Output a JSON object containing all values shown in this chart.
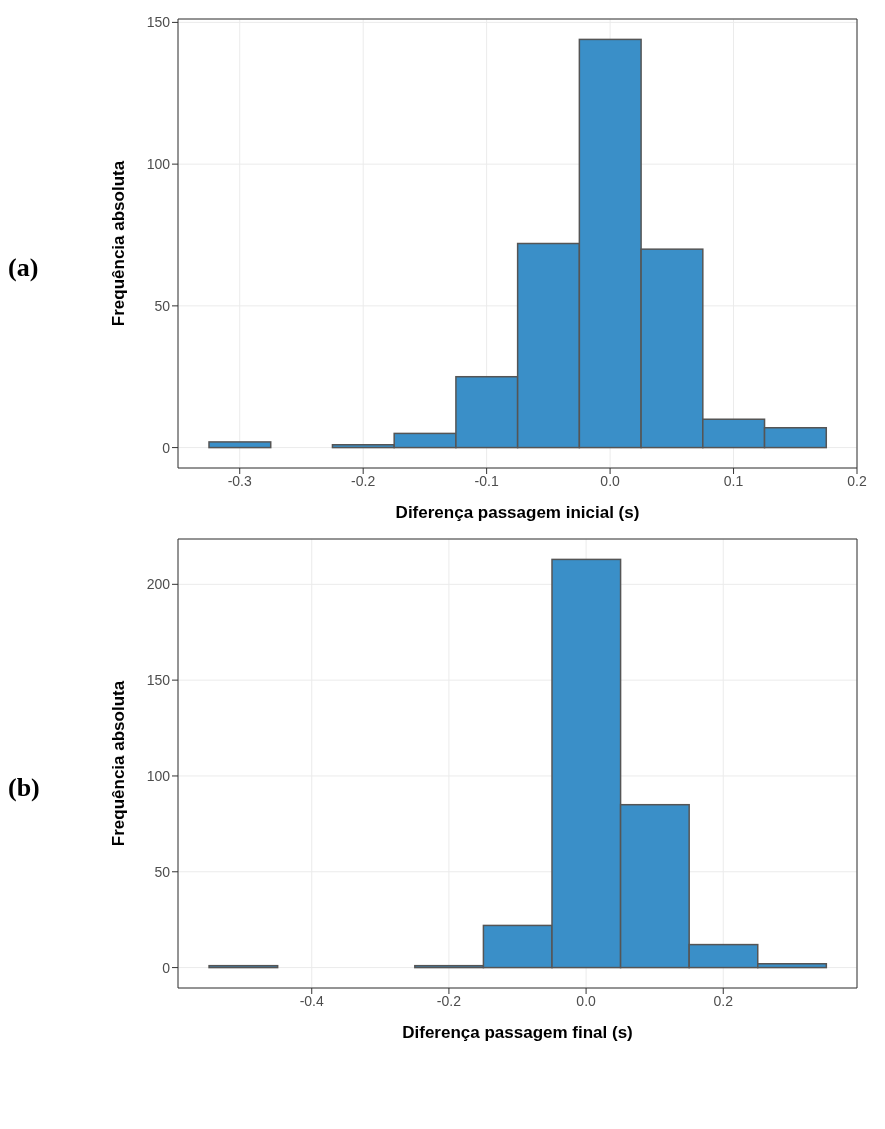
{
  "chart_data": [
    {
      "type": "histogram",
      "xlabel": "Diferença passagem inicial (s)",
      "ylabel": "Frequência absoluta",
      "annotations": [
        "(a)"
      ],
      "color": "#3a8fc8",
      "grid": true,
      "bins": [
        -0.325,
        -0.275,
        -0.225,
        -0.175,
        -0.125,
        -0.075,
        -0.025,
        0.025,
        0.075,
        0.125,
        0.175
      ],
      "values": [
        2,
        0,
        1,
        5,
        25,
        72,
        144,
        70,
        10,
        7
      ],
      "xlim": [
        -0.35,
        0.2
      ],
      "xticks": [
        -0.3,
        -0.2,
        -0.1,
        {
          "value": 0,
          "label": "0.0"
        },
        0.1,
        0.2
      ],
      "ylim": [
        -7.2,
        151.2
      ],
      "yticks": [
        0,
        50,
        100,
        150
      ]
    },
    {
      "type": "histogram",
      "xlabel": "Diferença passagem final (s)",
      "ylabel": "Frequência absoluta",
      "annotations": [
        "(b)"
      ],
      "color": "#3a8fc8",
      "grid": true,
      "bins": [
        -0.55,
        -0.45,
        -0.35,
        -0.25,
        -0.15,
        -0.05,
        0.05,
        0.15,
        0.25,
        0.35
      ],
      "values": [
        1,
        0,
        0,
        1,
        22,
        213,
        85,
        12,
        2
      ],
      "xlim": [
        -0.595,
        0.395
      ],
      "xticks": [
        -0.4,
        -0.2,
        {
          "value": 0,
          "label": "0.0"
        },
        0.2
      ],
      "ylim": [
        -10.65,
        223.65
      ],
      "yticks": [
        0,
        50,
        100,
        150,
        200
      ]
    }
  ]
}
